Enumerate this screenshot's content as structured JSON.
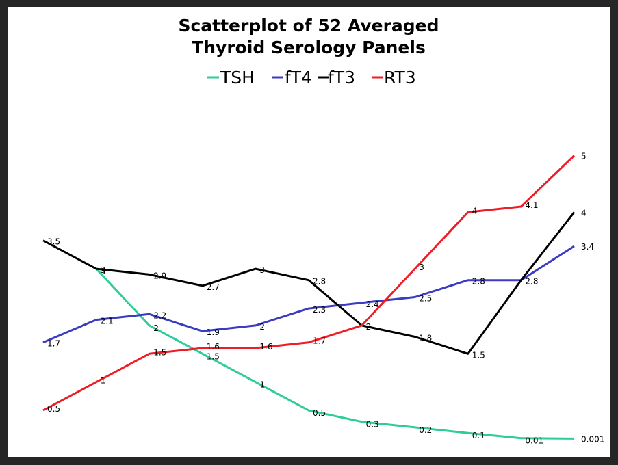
{
  "chart_data": {
    "type": "line",
    "title": "Scatterplot of 52 Averaged",
    "subtitle": "Thyroid Serology Panels",
    "legend_position": "top",
    "grid": false,
    "x": [
      1,
      2,
      3,
      4,
      5,
      6,
      7,
      8,
      9,
      10,
      11
    ],
    "ylim": [
      0,
      5.2
    ],
    "series": [
      {
        "name": "TSH",
        "color": "#2ecc9a",
        "values": [
          null,
          3,
          2,
          1.5,
          1,
          0.5,
          0.3,
          0.2,
          0.1,
          0.01,
          0.001
        ]
      },
      {
        "name": "fT4",
        "color": "#3b3bc4",
        "values": [
          1.7,
          2.1,
          2.2,
          1.9,
          2,
          2.3,
          2.4,
          2.5,
          2.8,
          2.8,
          3.4
        ]
      },
      {
        "name": "fT3",
        "color": "#000000",
        "values": [
          3.5,
          3,
          2.9,
          2.7,
          3,
          2.8,
          2,
          1.8,
          1.5,
          2.8,
          4
        ]
      },
      {
        "name": "RT3",
        "color": "#ee1c25",
        "values": [
          0.5,
          1,
          1.5,
          1.6,
          1.6,
          1.7,
          2,
          3,
          4,
          4.1,
          5
        ]
      }
    ],
    "point_labels": {
      "TSH": [
        "",
        "3",
        "2",
        "1.5",
        "1",
        "0.5",
        "0.3",
        "0.2",
        "0.1",
        "0.01",
        "0.001"
      ],
      "fT4": [
        "1.7",
        "2.1",
        "2.2",
        "1.9",
        "2",
        "2.3",
        "2.4",
        "2.5",
        "2.8",
        "2.8",
        "3.4"
      ],
      "fT3": [
        "3.5",
        "3",
        "2.9",
        "2.7",
        "3",
        "2.8",
        "2",
        "1.8",
        "1.5",
        "",
        "4"
      ],
      "RT3": [
        "0.5",
        "1",
        "1.5",
        "1.6",
        "1.6",
        "1.7",
        "",
        "3",
        "4",
        "4.1",
        "5"
      ]
    }
  }
}
